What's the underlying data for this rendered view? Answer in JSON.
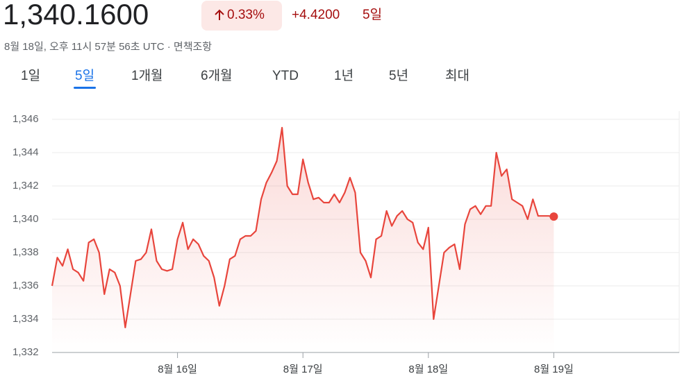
{
  "header": {
    "price": "1,340.1600",
    "change_percent": "0.33%",
    "change": "+4.4200",
    "period": "5일",
    "timestamp": "8월 18일, 오후 11시 57분 56초 UTC · 면책조항"
  },
  "tabs": {
    "items": [
      "1일",
      "5일",
      "1개월",
      "6개월",
      "YTD",
      "1년",
      "5년",
      "최대"
    ],
    "active": 1
  },
  "chart_data": {
    "type": "line",
    "color": "#e8453c",
    "grid": true,
    "xlim": [
      0,
      120
    ],
    "ylim": [
      1332,
      1346.5
    ],
    "xticks": [
      {
        "value": 24,
        "label": "8월 16일"
      },
      {
        "value": 48,
        "label": "8월 17일"
      },
      {
        "value": 72,
        "label": "8월 18일"
      },
      {
        "value": 96,
        "label": "8월 19일"
      }
    ],
    "yticks": [
      {
        "value": 1332,
        "label": "1,332"
      },
      {
        "value": 1334,
        "label": "1,334"
      },
      {
        "value": 1336,
        "label": "1,336"
      },
      {
        "value": 1338,
        "label": "1,338"
      },
      {
        "value": 1340,
        "label": "1,340"
      },
      {
        "value": 1342,
        "label": "1,342"
      },
      {
        "value": 1344,
        "label": "1,344"
      },
      {
        "value": 1346,
        "label": "1,346"
      }
    ],
    "x": [
      0,
      1,
      2,
      3,
      4,
      5,
      6,
      7,
      8,
      9,
      10,
      11,
      12,
      13,
      14,
      15,
      16,
      17,
      18,
      19,
      20,
      21,
      22,
      23,
      24,
      25,
      26,
      27,
      28,
      29,
      30,
      31,
      32,
      33,
      34,
      35,
      36,
      37,
      38,
      39,
      40,
      41,
      42,
      43,
      44,
      45,
      46,
      47,
      48,
      49,
      50,
      51,
      52,
      53,
      54,
      55,
      56,
      57,
      58,
      59,
      60,
      61,
      62,
      63,
      64,
      65,
      66,
      67,
      68,
      69,
      70,
      71,
      72,
      73,
      74,
      75,
      76,
      77,
      78,
      79,
      80,
      81,
      82,
      83,
      84,
      85,
      86,
      87,
      88,
      89,
      90,
      91,
      92,
      93,
      94,
      95,
      96
    ],
    "values": [
      1336.0,
      1337.7,
      1337.2,
      1338.2,
      1337.0,
      1336.8,
      1336.3,
      1338.6,
      1338.8,
      1338.0,
      1335.5,
      1337.0,
      1336.8,
      1336.0,
      1333.5,
      1335.5,
      1337.5,
      1337.6,
      1338.0,
      1339.4,
      1337.5,
      1337.0,
      1336.9,
      1337.0,
      1338.8,
      1339.8,
      1338.2,
      1338.8,
      1338.5,
      1337.8,
      1337.5,
      1336.5,
      1334.8,
      1336.0,
      1337.6,
      1337.8,
      1338.8,
      1339.0,
      1339.0,
      1339.3,
      1341.2,
      1342.2,
      1342.8,
      1343.5,
      1345.5,
      1342.0,
      1341.5,
      1341.5,
      1343.6,
      1342.2,
      1341.2,
      1341.3,
      1341.0,
      1341.0,
      1341.5,
      1341.0,
      1341.6,
      1342.5,
      1341.6,
      1338.0,
      1337.5,
      1336.5,
      1338.8,
      1339.0,
      1340.5,
      1339.6,
      1340.2,
      1340.5,
      1340.0,
      1339.8,
      1338.6,
      1338.2,
      1339.5,
      1334.0,
      1336.0,
      1338.0,
      1338.3,
      1338.5,
      1337.0,
      1339.7,
      1340.6,
      1340.8,
      1340.3,
      1340.8,
      1340.8,
      1344.0,
      1342.6,
      1343.0,
      1341.2,
      1341.0,
      1340.8,
      1340.0,
      1341.2,
      1340.2,
      1340.2,
      1340.2,
      1340.16
    ]
  }
}
